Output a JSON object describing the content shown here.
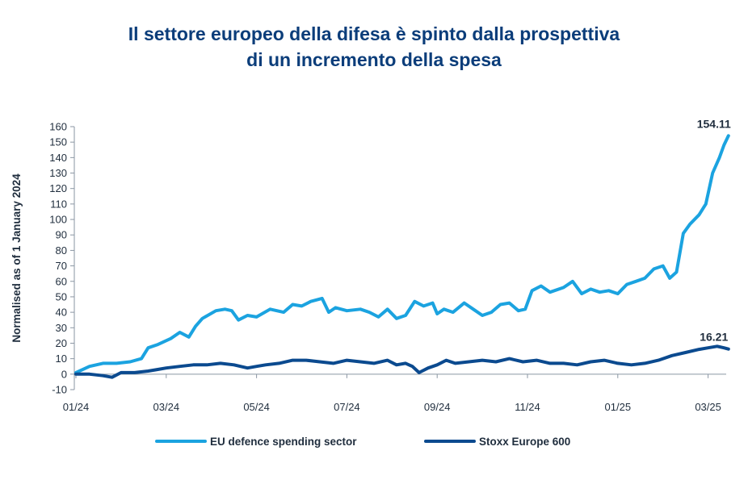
{
  "title": {
    "line1": "Il settore europeo della difesa è spinto dalla prospettiva",
    "line2": "di un incremento della spesa"
  },
  "colors": {
    "title": "#0b3d7a",
    "defence": "#1ba3e0",
    "stoxx": "#0b4a8f",
    "axis": "#8a96a3",
    "text": "#1f2d3d"
  },
  "chart_data": {
    "type": "line",
    "title": "Il settore europeo della difesa è spinto dalla prospettiva di un incremento della spesa",
    "xlabel": "",
    "ylabel": "Normalised as of 1 January 2024",
    "ylim": [
      -10,
      160
    ],
    "yticks": [
      -10,
      0,
      10,
      20,
      30,
      40,
      50,
      60,
      70,
      80,
      90,
      100,
      110,
      120,
      130,
      140,
      150,
      160
    ],
    "xlim": [
      0,
      14.5
    ],
    "xticks": [
      {
        "x": 0,
        "label": "01/24"
      },
      {
        "x": 2,
        "label": "03/24"
      },
      {
        "x": 4,
        "label": "05/24"
      },
      {
        "x": 6,
        "label": "07/24"
      },
      {
        "x": 8,
        "label": "09/24"
      },
      {
        "x": 10,
        "label": "11/24"
      },
      {
        "x": 12,
        "label": "01/25"
      },
      {
        "x": 14,
        "label": "03/25"
      }
    ],
    "grid": false,
    "legend": "bottom",
    "series": [
      {
        "name": "EU defence spending sector",
        "end_label": "154.11",
        "x": [
          0,
          0.3,
          0.6,
          0.9,
          1.2,
          1.45,
          1.6,
          1.8,
          2.1,
          2.3,
          2.5,
          2.65,
          2.8,
          3.1,
          3.3,
          3.45,
          3.6,
          3.8,
          4.0,
          4.3,
          4.6,
          4.8,
          5.0,
          5.2,
          5.45,
          5.6,
          5.75,
          6.0,
          6.3,
          6.5,
          6.7,
          6.9,
          7.1,
          7.3,
          7.5,
          7.7,
          7.9,
          8.0,
          8.15,
          8.35,
          8.6,
          8.8,
          9.0,
          9.2,
          9.4,
          9.6,
          9.8,
          9.95,
          10.1,
          10.3,
          10.5,
          10.8,
          11.0,
          11.2,
          11.4,
          11.6,
          11.8,
          12.0,
          12.2,
          12.4,
          12.6,
          12.8,
          13.0,
          13.15,
          13.3,
          13.45,
          13.6,
          13.8,
          13.95,
          14.1,
          14.25,
          14.35,
          14.45
        ],
        "values": [
          1,
          5,
          7,
          7,
          8,
          10,
          17,
          19,
          23,
          27,
          24,
          31,
          36,
          41,
          42,
          41,
          35,
          38,
          37,
          42,
          40,
          45,
          44,
          47,
          49,
          40,
          43,
          41,
          42,
          40,
          37,
          42,
          36,
          38,
          47,
          44,
          46,
          39,
          42,
          40,
          46,
          42,
          38,
          40,
          45,
          46,
          41,
          42,
          54,
          57,
          53,
          56,
          60,
          52,
          55,
          53,
          54,
          52,
          58,
          60,
          62,
          68,
          70,
          62,
          66,
          91,
          97,
          103,
          110,
          130,
          140,
          148,
          154.11
        ]
      },
      {
        "name": "Stoxx Europe 600",
        "end_label": "16.21",
        "x": [
          0,
          0.3,
          0.6,
          0.8,
          1.0,
          1.3,
          1.6,
          1.8,
          2.0,
          2.3,
          2.6,
          2.9,
          3.2,
          3.5,
          3.8,
          4.0,
          4.2,
          4.5,
          4.8,
          5.1,
          5.4,
          5.7,
          6.0,
          6.3,
          6.6,
          6.9,
          7.1,
          7.3,
          7.45,
          7.6,
          7.8,
          8.0,
          8.2,
          8.4,
          8.7,
          9.0,
          9.3,
          9.6,
          9.9,
          10.2,
          10.5,
          10.8,
          11.1,
          11.4,
          11.7,
          12.0,
          12.3,
          12.6,
          12.9,
          13.2,
          13.5,
          13.8,
          14.0,
          14.2,
          14.35,
          14.45
        ],
        "values": [
          0,
          0,
          -1,
          -2,
          1,
          1,
          2,
          3,
          4,
          5,
          6,
          6,
          7,
          6,
          4,
          5,
          6,
          7,
          9,
          9,
          8,
          7,
          9,
          8,
          7,
          9,
          6,
          7,
          5,
          1,
          4,
          6,
          9,
          7,
          8,
          9,
          8,
          10,
          8,
          9,
          7,
          7,
          6,
          8,
          9,
          7,
          6,
          7,
          9,
          12,
          14,
          16,
          17,
          18,
          17,
          16.21
        ]
      }
    ]
  }
}
